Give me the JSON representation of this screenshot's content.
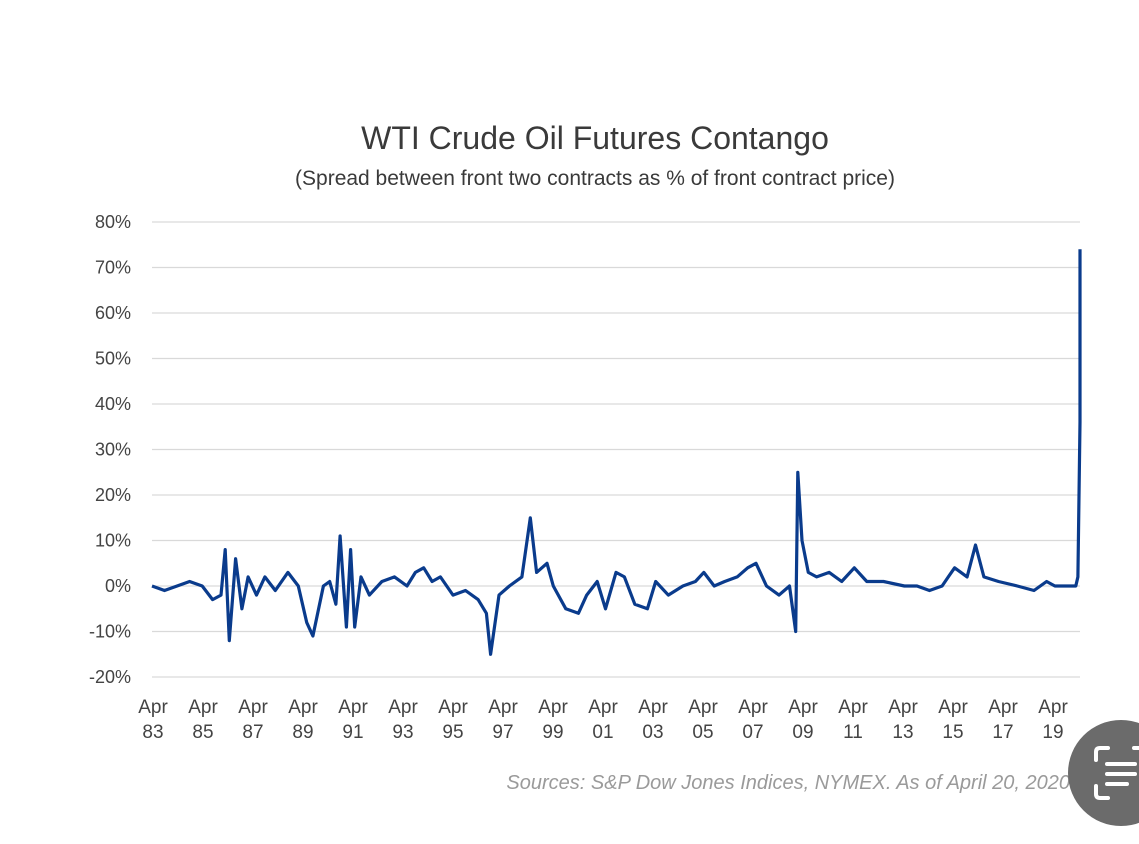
{
  "chart_data": {
    "type": "line",
    "title": "WTI Crude Oil Futures Contango",
    "subtitle": "(Spread between front two contracts as % of front contract price)",
    "source": "Sources: S&P Dow Jones Indices, NYMEX.  As of April 20, 2020",
    "y_ticks": [
      "80%",
      "70%",
      "60%",
      "50%",
      "40%",
      "30%",
      "20%",
      "10%",
      "0%",
      "-10%",
      "-20%"
    ],
    "x_ticks": [
      {
        "month": "Apr",
        "year": "83"
      },
      {
        "month": "Apr",
        "year": "85"
      },
      {
        "month": "Apr",
        "year": "87"
      },
      {
        "month": "Apr",
        "year": "89"
      },
      {
        "month": "Apr",
        "year": "91"
      },
      {
        "month": "Apr",
        "year": "93"
      },
      {
        "month": "Apr",
        "year": "95"
      },
      {
        "month": "Apr",
        "year": "97"
      },
      {
        "month": "Apr",
        "year": "99"
      },
      {
        "month": "Apr",
        "year": "01"
      },
      {
        "month": "Apr",
        "year": "03"
      },
      {
        "month": "Apr",
        "year": "05"
      },
      {
        "month": "Apr",
        "year": "07"
      },
      {
        "month": "Apr",
        "year": "09"
      },
      {
        "month": "Apr",
        "year": "11"
      },
      {
        "month": "Apr",
        "year": "13"
      },
      {
        "month": "Apr",
        "year": "15"
      },
      {
        "month": "Apr",
        "year": "17"
      },
      {
        "month": "Apr",
        "year": "19"
      }
    ],
    "ylim": [
      -20,
      80
    ],
    "xlim": [
      "1983-04",
      "2020-04"
    ],
    "grid": "horizontal",
    "line_color": "#0a3b8c",
    "series": [
      {
        "values": [
          [
            "1983-04",
            0
          ],
          [
            "1983-10",
            -1
          ],
          [
            "1984-04",
            0
          ],
          [
            "1984-10",
            1
          ],
          [
            "1985-04",
            0
          ],
          [
            "1985-09",
            -3
          ],
          [
            "1986-01",
            -2
          ],
          [
            "1986-03",
            8
          ],
          [
            "1986-05",
            -12
          ],
          [
            "1986-08",
            6
          ],
          [
            "1986-11",
            -5
          ],
          [
            "1987-02",
            2
          ],
          [
            "1987-06",
            -2
          ],
          [
            "1987-10",
            2
          ],
          [
            "1988-03",
            -1
          ],
          [
            "1988-09",
            3
          ],
          [
            "1989-02",
            0
          ],
          [
            "1989-06",
            -8
          ],
          [
            "1989-09",
            -11
          ],
          [
            "1990-02",
            0
          ],
          [
            "1990-05",
            1
          ],
          [
            "1990-08",
            -4
          ],
          [
            "1990-10",
            11
          ],
          [
            "1991-01",
            -9
          ],
          [
            "1991-03",
            8
          ],
          [
            "1991-05",
            -9
          ],
          [
            "1991-08",
            2
          ],
          [
            "1991-12",
            -2
          ],
          [
            "1992-06",
            1
          ],
          [
            "1992-12",
            2
          ],
          [
            "1993-06",
            0
          ],
          [
            "1993-10",
            3
          ],
          [
            "1994-02",
            4
          ],
          [
            "1994-06",
            1
          ],
          [
            "1994-10",
            2
          ],
          [
            "1995-04",
            -2
          ],
          [
            "1995-10",
            -1
          ],
          [
            "1996-04",
            -3
          ],
          [
            "1996-08",
            -6
          ],
          [
            "1996-10",
            -15
          ],
          [
            "1997-02",
            -2
          ],
          [
            "1997-07",
            0
          ],
          [
            "1998-01",
            2
          ],
          [
            "1998-05",
            15
          ],
          [
            "1998-08",
            3
          ],
          [
            "1999-01",
            5
          ],
          [
            "1999-04",
            0
          ],
          [
            "1999-10",
            -5
          ],
          [
            "2000-04",
            -6
          ],
          [
            "2000-08",
            -2
          ],
          [
            "2001-01",
            1
          ],
          [
            "2001-05",
            -5
          ],
          [
            "2001-10",
            3
          ],
          [
            "2002-02",
            2
          ],
          [
            "2002-07",
            -4
          ],
          [
            "2003-01",
            -5
          ],
          [
            "2003-05",
            1
          ],
          [
            "2003-11",
            -2
          ],
          [
            "2004-06",
            0
          ],
          [
            "2004-12",
            1
          ],
          [
            "2005-04",
            3
          ],
          [
            "2005-09",
            0
          ],
          [
            "2006-02",
            1
          ],
          [
            "2006-08",
            2
          ],
          [
            "2007-01",
            4
          ],
          [
            "2007-05",
            5
          ],
          [
            "2007-10",
            0
          ],
          [
            "2008-04",
            -2
          ],
          [
            "2008-09",
            0
          ],
          [
            "2008-12",
            -10
          ],
          [
            "2009-01",
            25
          ],
          [
            "2009-03",
            10
          ],
          [
            "2009-06",
            3
          ],
          [
            "2009-10",
            2
          ],
          [
            "2010-04",
            3
          ],
          [
            "2010-10",
            1
          ],
          [
            "2011-04",
            4
          ],
          [
            "2011-10",
            1
          ],
          [
            "2012-06",
            1
          ],
          [
            "2013-04",
            0
          ],
          [
            "2013-10",
            0
          ],
          [
            "2014-04",
            -1
          ],
          [
            "2014-10",
            0
          ],
          [
            "2015-01",
            2
          ],
          [
            "2015-04",
            4
          ],
          [
            "2015-10",
            2
          ],
          [
            "2016-02",
            9
          ],
          [
            "2016-06",
            2
          ],
          [
            "2017-01",
            1
          ],
          [
            "2017-10",
            0
          ],
          [
            "2018-06",
            -1
          ],
          [
            "2018-12",
            1
          ],
          [
            "2019-04",
            0
          ],
          [
            "2019-10",
            0
          ],
          [
            "2020-02",
            0
          ],
          [
            "2020-03",
            2
          ],
          [
            "2020-04",
            36
          ],
          [
            "2020-04",
            74
          ]
        ]
      }
    ]
  },
  "overlay": {
    "lens_icon": "text-scan-icon"
  }
}
